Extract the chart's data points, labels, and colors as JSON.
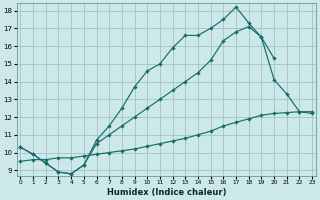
{
  "bg_color": "#cce8e8",
  "grid_color": "#a0c4c4",
  "line_color": "#1a6b6b",
  "xlim_min": -0.3,
  "xlim_max": 23.3,
  "ylim_min": 8.7,
  "ylim_max": 18.4,
  "xticks": [
    0,
    1,
    2,
    3,
    4,
    5,
    6,
    7,
    8,
    9,
    10,
    11,
    12,
    13,
    14,
    15,
    16,
    17,
    18,
    19,
    20,
    21,
    22,
    23
  ],
  "yticks": [
    9,
    10,
    11,
    12,
    13,
    14,
    15,
    16,
    17,
    18
  ],
  "xlabel": "Humidex (Indice chaleur)",
  "line1_x": [
    0,
    1,
    2,
    3,
    4,
    5,
    6,
    7,
    8,
    9,
    10,
    11,
    12,
    13,
    14,
    15,
    16,
    17,
    18,
    19,
    20
  ],
  "line1_y": [
    10.3,
    9.9,
    9.4,
    8.9,
    8.8,
    9.3,
    10.7,
    11.5,
    12.5,
    13.7,
    14.6,
    15.0,
    15.9,
    16.6,
    16.6,
    17.0,
    17.5,
    18.2,
    17.3,
    16.5,
    15.3
  ],
  "line2_x": [
    0,
    1,
    2,
    3,
    4,
    5,
    6,
    7,
    8,
    9,
    10,
    11,
    12,
    13,
    14,
    15,
    16,
    17,
    18,
    19,
    20,
    21,
    22,
    23
  ],
  "line2_y": [
    10.3,
    9.9,
    9.4,
    8.9,
    8.8,
    9.3,
    10.5,
    11.0,
    11.5,
    12.0,
    12.5,
    13.0,
    13.5,
    14.0,
    14.5,
    15.2,
    16.3,
    16.8,
    17.1,
    16.5,
    14.1,
    13.3,
    12.3,
    12.2
  ],
  "line3_x": [
    0,
    1,
    2,
    3,
    4,
    5,
    6,
    7,
    8,
    9,
    10,
    11,
    12,
    13,
    14,
    15,
    16,
    17,
    18,
    19,
    20,
    21,
    22,
    23
  ],
  "line3_y": [
    9.5,
    9.6,
    9.6,
    9.7,
    9.7,
    9.8,
    9.9,
    10.0,
    10.1,
    10.2,
    10.35,
    10.5,
    10.65,
    10.8,
    11.0,
    11.2,
    11.5,
    11.7,
    11.9,
    12.1,
    12.2,
    12.25,
    12.3,
    12.3
  ]
}
